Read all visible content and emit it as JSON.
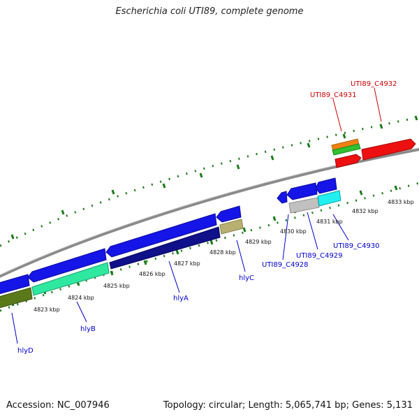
{
  "title": "Escherichia coli UTI89, complete genome",
  "footer": {
    "accession": "Accession: NC_007946",
    "summary": "Topology: circular; Length: 5,065,741 bp; Genes: 5,131"
  },
  "colors": {
    "backbone": "#8a8a8a",
    "tick": "#1a7a1a",
    "ruler_label": "#111111",
    "forward_gene_label": "#cc0000",
    "reverse_gene_label": "#0000cc"
  },
  "ruler": {
    "unit": "kbp",
    "labels": [
      "4823 kbp",
      "4824 kbp",
      "4825 kbp",
      "4826 kbp",
      "4827 kbp",
      "4828 kbp",
      "4829 kbp",
      "4830 kbp",
      "4831 kbp",
      "4832 kbp",
      "4833 kbp"
    ]
  },
  "gene_labels": {
    "forward": [
      "UTI89_C4931",
      "UTI89_C4932"
    ],
    "reverse": [
      "hlyD",
      "hlyB",
      "hlyA",
      "hlyC",
      "UTI89_C4928",
      "UTI89_C4929",
      "UTI89_C4930"
    ]
  }
}
